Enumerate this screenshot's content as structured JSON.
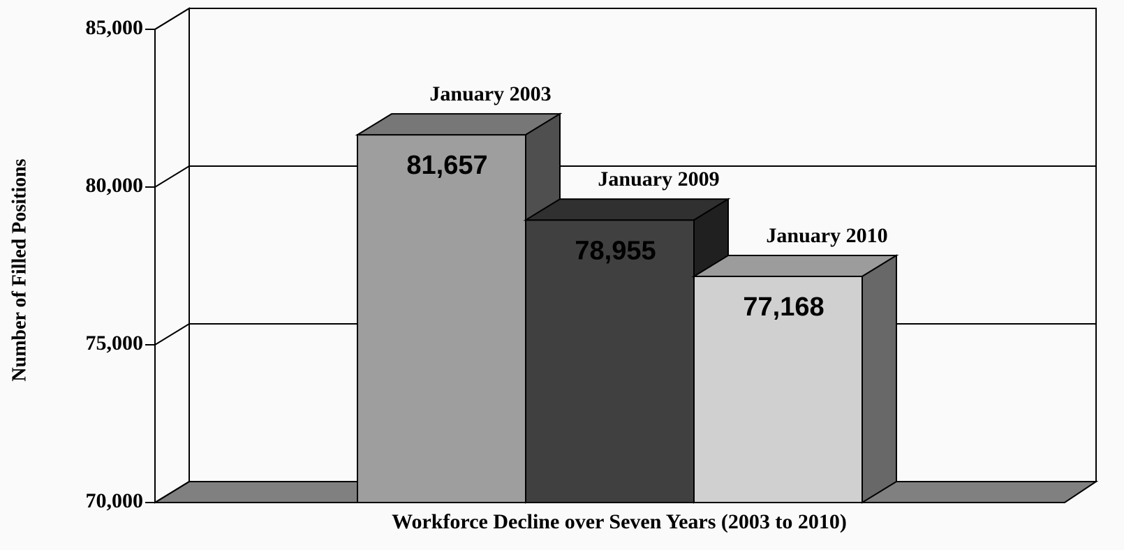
{
  "chart_data": {
    "type": "bar3d",
    "x_label": "Workforce Decline over Seven Years (2003 to 2010)",
    "y_label": "Number of Filled Positions",
    "categories": [
      "January 2003",
      "January 2009",
      "January 2010"
    ],
    "values": [
      81657,
      78955,
      77168
    ],
    "value_labels": [
      "81,657",
      "78,955",
      "77,168"
    ],
    "colors": [
      "#9e9e9e",
      "#404040",
      "#d0d0d0"
    ],
    "ylim": [
      70000,
      85000
    ],
    "yticks": [
      {
        "value": 70000,
        "label": "70,000"
      },
      {
        "value": 75000,
        "label": "75,000"
      },
      {
        "value": 80000,
        "label": "80,000"
      },
      {
        "value": 85000,
        "label": "85,000"
      }
    ],
    "grid": true
  }
}
